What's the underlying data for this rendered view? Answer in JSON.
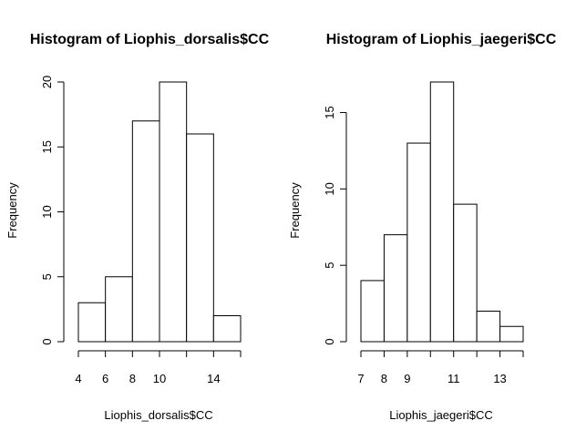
{
  "chart_data": [
    {
      "type": "histogram",
      "title": "Histogram of Liophis_dorsalis$CC",
      "xlabel": "Liophis_dorsalis$CC",
      "ylabel": "Frequency",
      "bin_edges": [
        4,
        6,
        8,
        10,
        12,
        14,
        16
      ],
      "values": [
        3,
        5,
        17,
        20,
        16,
        2
      ],
      "x_ticks": [
        4,
        6,
        8,
        10,
        14
      ],
      "y_ticks": [
        0,
        5,
        10,
        15,
        20
      ],
      "xlim": [
        4,
        16
      ],
      "ylim": [
        0,
        20
      ]
    },
    {
      "type": "histogram",
      "title": "Histogram of Liophis_jaegeri$CC",
      "xlabel": "Liophis_jaegeri$CC",
      "ylabel": "Frequency",
      "bin_edges": [
        7,
        8,
        9,
        10,
        11,
        12,
        13,
        14
      ],
      "values": [
        4,
        7,
        13,
        17,
        9,
        2,
        1
      ],
      "x_ticks": [
        7,
        8,
        9,
        11,
        13
      ],
      "y_ticks": [
        0,
        5,
        10,
        15
      ],
      "xlim": [
        7,
        14
      ],
      "ylim": [
        0,
        17
      ]
    }
  ]
}
